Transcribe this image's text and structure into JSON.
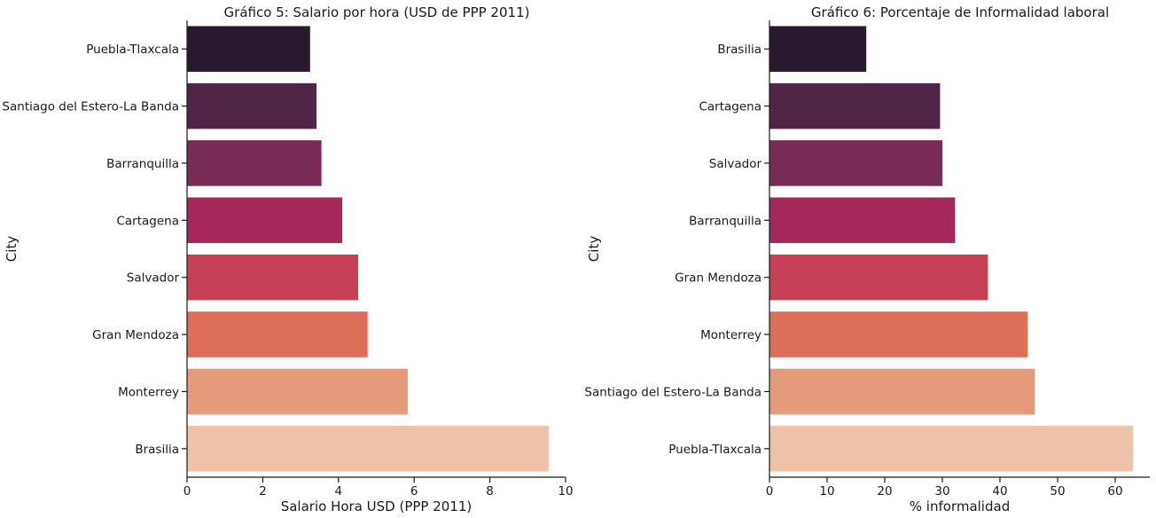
{
  "chart_data": [
    {
      "type": "bar",
      "orientation": "horizontal",
      "title": "Gráfico 5: Salario por hora (USD de PPP 2011)",
      "xlabel": "Salario Hora USD (PPP 2011)",
      "ylabel": "City",
      "xlim": [
        0,
        10
      ],
      "xticks": [
        0,
        2,
        4,
        6,
        8,
        10
      ],
      "categories": [
        "Puebla-Tlaxcala",
        "Santiago del Estero-La Banda",
        "Barranquilla",
        "Cartagena",
        "Salvador",
        "Gran Mendoza",
        "Monterrey",
        "Brasilia"
      ],
      "values": [
        3.25,
        3.42,
        3.55,
        4.1,
        4.52,
        4.77,
        5.83,
        9.55
      ],
      "colors": [
        "#28192f",
        "#4f2447",
        "#782b54",
        "#a4285a",
        "#c84055",
        "#dd6e5a",
        "#e59b7b",
        "#edc2a9"
      ],
      "grid": false
    },
    {
      "type": "bar",
      "orientation": "horizontal",
      "title": "Gráfico 6: Porcentaje de Informalidad laboral",
      "xlabel": "% informalidad",
      "ylabel": "City",
      "xlim": [
        0,
        66
      ],
      "xticks": [
        0,
        10,
        20,
        30,
        40,
        50,
        60
      ],
      "categories": [
        "Brasilia",
        "Cartagena",
        "Salvador",
        "Barranquilla",
        "Gran Mendoza",
        "Monterrey",
        "Santiago del Estero-La Banda",
        "Puebla-Tlaxcala"
      ],
      "values": [
        16.8,
        29.6,
        30.0,
        32.2,
        37.9,
        44.8,
        46.0,
        63.1
      ],
      "colors": [
        "#28192f",
        "#4f2447",
        "#782b54",
        "#a4285a",
        "#c84055",
        "#dd6e5a",
        "#e59b7b",
        "#edc2a9"
      ],
      "grid": false
    }
  ]
}
